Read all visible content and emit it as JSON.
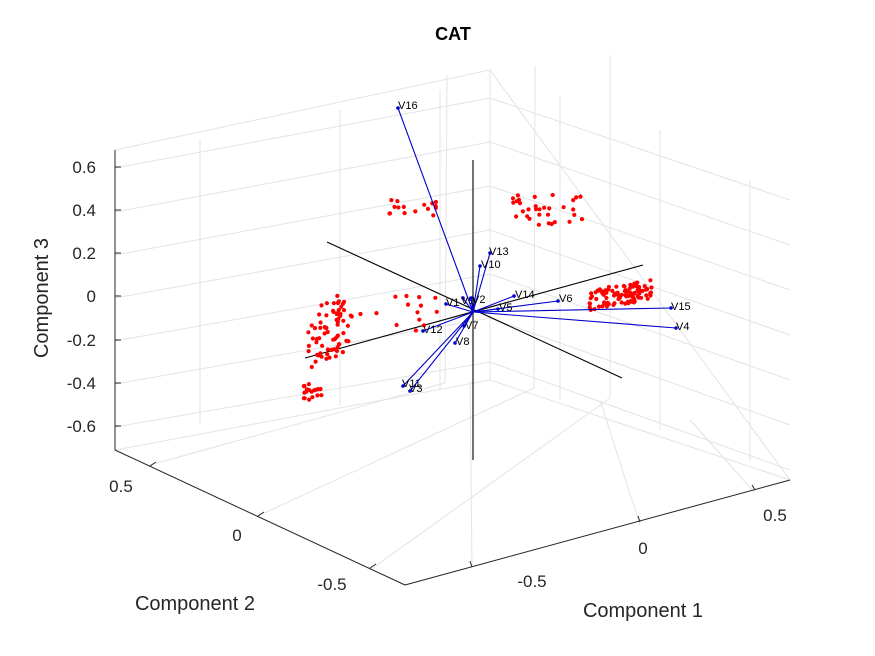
{
  "chart_data": {
    "type": "scatter",
    "subtype": "3d-biplot",
    "title": "CAT",
    "xlabel": "Component 1",
    "ylabel": "Component 2",
    "zlabel": "Component 3",
    "xticks": [
      "-0.5",
      "0",
      "0.5"
    ],
    "yticks": [
      "-0.5",
      "0",
      "0.5"
    ],
    "zticks": [
      "0.6",
      "0.4",
      "0.2",
      "0",
      "-0.2",
      "-0.4",
      "-0.6"
    ],
    "xlim": [
      -0.9,
      0.9
    ],
    "ylim": [
      -0.8,
      0.8
    ],
    "zlim": [
      -0.7,
      0.7
    ],
    "grid": true,
    "vector_color": "#0000cc",
    "point_color": "#ff0000",
    "vectors": [
      {
        "label": "V16"
      },
      {
        "label": "V13"
      },
      {
        "label": "V10"
      },
      {
        "label": "V14"
      },
      {
        "label": "V6"
      },
      {
        "label": "V15"
      },
      {
        "label": "V4"
      },
      {
        "label": "V5"
      },
      {
        "label": "V1"
      },
      {
        "label": "V9"
      },
      {
        "label": "V2"
      },
      {
        "label": "V12"
      },
      {
        "label": "V7"
      },
      {
        "label": "V8"
      },
      {
        "label": "V11"
      },
      {
        "label": "V3"
      }
    ]
  }
}
